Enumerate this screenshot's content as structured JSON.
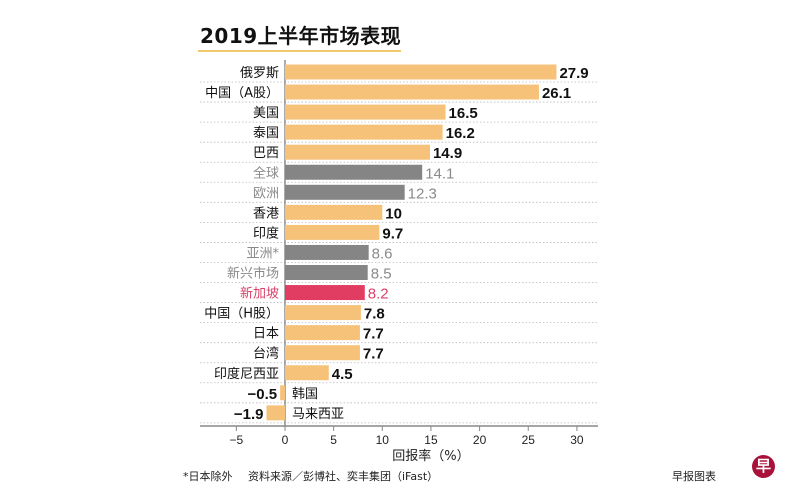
{
  "chart_data": {
    "type": "bar",
    "orientation": "horizontal",
    "title": "2019上半年市场表现",
    "xlabel": "回报率（%）",
    "ylabel": "",
    "xlim": [
      -6.5,
      32
    ],
    "xticks": [
      -5,
      0,
      5,
      10,
      15,
      20,
      25,
      30
    ],
    "xtick_labels": [
      "−5",
      "0",
      "5",
      "10",
      "15",
      "20",
      "25",
      "30"
    ],
    "grid": "dotted horizontal row separators",
    "categories": [
      "俄罗斯",
      "中国（A股）",
      "美国",
      "泰国",
      "巴西",
      "全球",
      "欧洲",
      "香港",
      "印度",
      "亚洲*",
      "新兴市场",
      "新加坡",
      "中国（H股）",
      "日本",
      "台湾",
      "印度尼西亚",
      "韩国",
      "马来西亚"
    ],
    "values": [
      27.9,
      26.1,
      16.5,
      16.2,
      14.9,
      14.1,
      12.3,
      10,
      9.7,
      8.6,
      8.5,
      8.2,
      7.8,
      7.7,
      7.7,
      4.5,
      -0.5,
      -1.9
    ],
    "value_labels": [
      "27.9",
      "26.1",
      "16.5",
      "16.2",
      "14.9",
      "14.1",
      "12.3",
      "10",
      "9.7",
      "8.6",
      "8.5",
      "8.2",
      "7.8",
      "7.7",
      "7.7",
      "4.5",
      "−0.5",
      "−1.9"
    ],
    "kinds": [
      "market",
      "market",
      "market",
      "market",
      "market",
      "region",
      "region",
      "market",
      "market",
      "region",
      "region",
      "highlight",
      "market",
      "market",
      "market",
      "market",
      "market",
      "market"
    ],
    "colors": {
      "market": "#f6c27a",
      "region": "#858585",
      "highlight": "#e13d63",
      "market_text": "#111111",
      "region_text": "#8a8a8a",
      "highlight_text": "#d9416a",
      "axis": "#888888",
      "grid": "#bbbbbb"
    }
  },
  "footer": {
    "note": "*日本除外",
    "source": "资料来源／彭博社、奕丰集团（iFast）",
    "credit": "早报图表",
    "logo_glyph": "早"
  }
}
